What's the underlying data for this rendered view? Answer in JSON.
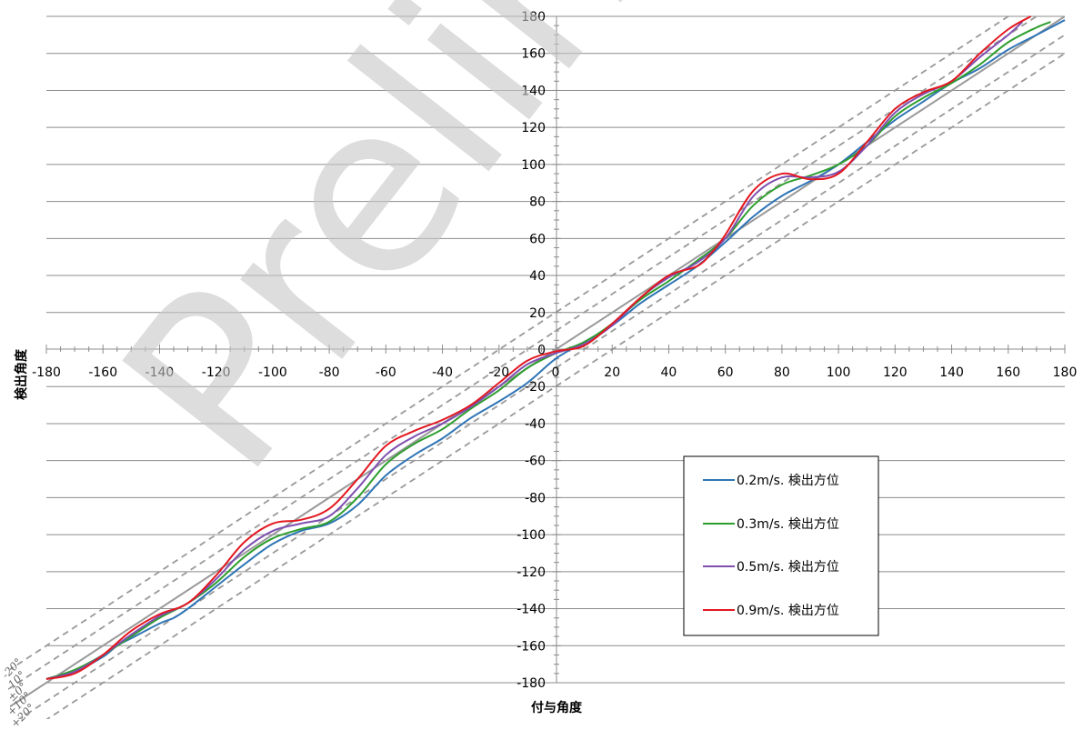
{
  "watermark": "Prelim",
  "chart_data": {
    "type": "line",
    "xlabel": "付与角度",
    "ylabel": "検出角度",
    "xlim": [
      -180,
      180
    ],
    "ylim": [
      -180,
      180
    ],
    "xticks": [
      -180,
      -160,
      -140,
      -120,
      -100,
      -80,
      -60,
      -40,
      -20,
      0,
      20,
      40,
      60,
      80,
      100,
      120,
      140,
      160,
      180
    ],
    "yticks": [
      -180,
      -160,
      -140,
      -120,
      -100,
      -80,
      -60,
      -40,
      -20,
      0,
      20,
      40,
      60,
      80,
      100,
      120,
      140,
      160,
      180
    ],
    "grid": "horizontal",
    "legend_position": "lower-right",
    "reference_lines": {
      "offsets": [
        -20,
        -10,
        0,
        10,
        20
      ],
      "labels": [
        "-20°",
        "-10°",
        "±0°",
        "+10°",
        "+20°"
      ],
      "color_solid": "#999999",
      "color_dashed": "#999999"
    },
    "series": [
      {
        "name": "0.2m/s. 検出方位",
        "color": "#2e75b6",
        "x": [
          -180,
          -170,
          -160,
          -155,
          -150,
          -140,
          -135,
          -130,
          -120,
          -110,
          -100,
          -90,
          -80,
          -70,
          -60,
          -50,
          -40,
          -30,
          -20,
          -10,
          0,
          10,
          20,
          30,
          40,
          50,
          60,
          70,
          80,
          90,
          100,
          110,
          120,
          130,
          140,
          150,
          160,
          170,
          180
        ],
        "y": [
          -178,
          -174,
          -166,
          -160,
          -156,
          -148,
          -145,
          -140,
          -128,
          -116,
          -105,
          -98,
          -94,
          -84,
          -68,
          -57,
          -48,
          -37,
          -28,
          -18,
          -5,
          4,
          13,
          25,
          35,
          45,
          58,
          72,
          83,
          91,
          100,
          112,
          124,
          134,
          144,
          152,
          162,
          170,
          178
        ]
      },
      {
        "name": "0.3m/s. 検出方位",
        "color": "#2e9e2e",
        "x": [
          -180,
          -170,
          -160,
          -150,
          -140,
          -130,
          -120,
          -110,
          -100,
          -90,
          -80,
          -70,
          -60,
          -50,
          -40,
          -30,
          -20,
          -10,
          0,
          10,
          20,
          30,
          40,
          50,
          60,
          70,
          80,
          90,
          100,
          110,
          120,
          130,
          140,
          150,
          160,
          170,
          175
        ],
        "y": [
          -178,
          -173,
          -165,
          -155,
          -145,
          -137,
          -126,
          -112,
          -102,
          -97,
          -93,
          -80,
          -62,
          -51,
          -43,
          -32,
          -22,
          -10,
          -2,
          4,
          14,
          27,
          37,
          48,
          60,
          78,
          89,
          94,
          100,
          110,
          126,
          136,
          144,
          154,
          166,
          174,
          177
        ]
      },
      {
        "name": "0.5m/s. 検出方位",
        "color": "#7f4fb0",
        "x": [
          -180,
          -170,
          -160,
          -150,
          -140,
          -130,
          -120,
          -110,
          -100,
          -90,
          -80,
          -70,
          -60,
          -50,
          -40,
          -30,
          -20,
          -10,
          0,
          10,
          20,
          30,
          40,
          50,
          60,
          70,
          80,
          90,
          100,
          110,
          120,
          130,
          140,
          150,
          160,
          165
        ],
        "y": [
          -178,
          -174,
          -165,
          -154,
          -144,
          -137,
          -124,
          -108,
          -98,
          -94,
          -90,
          -75,
          -57,
          -47,
          -40,
          -31,
          -20,
          -8,
          -2,
          3,
          13,
          28,
          39,
          47,
          60,
          83,
          93,
          93,
          96,
          110,
          128,
          138,
          145,
          158,
          170,
          177
        ]
      },
      {
        "name": "0.9m/s. 検出方位",
        "color": "#e3171f",
        "x": [
          -180,
          -170,
          -160,
          -150,
          -140,
          -130,
          -120,
          -110,
          -100,
          -90,
          -80,
          -70,
          -60,
          -50,
          -40,
          -30,
          -20,
          -10,
          0,
          10,
          20,
          30,
          40,
          50,
          55,
          60,
          70,
          80,
          90,
          100,
          110,
          120,
          130,
          140,
          150,
          160,
          168
        ],
        "y": [
          -178,
          -175,
          -165,
          -152,
          -143,
          -137,
          -122,
          -104,
          -94,
          -92,
          -86,
          -70,
          -52,
          -44,
          -38,
          -30,
          -18,
          -6,
          -1,
          2,
          14,
          28,
          40,
          45,
          52,
          62,
          86,
          95,
          92,
          95,
          112,
          130,
          139,
          145,
          160,
          173,
          180
        ]
      }
    ]
  }
}
